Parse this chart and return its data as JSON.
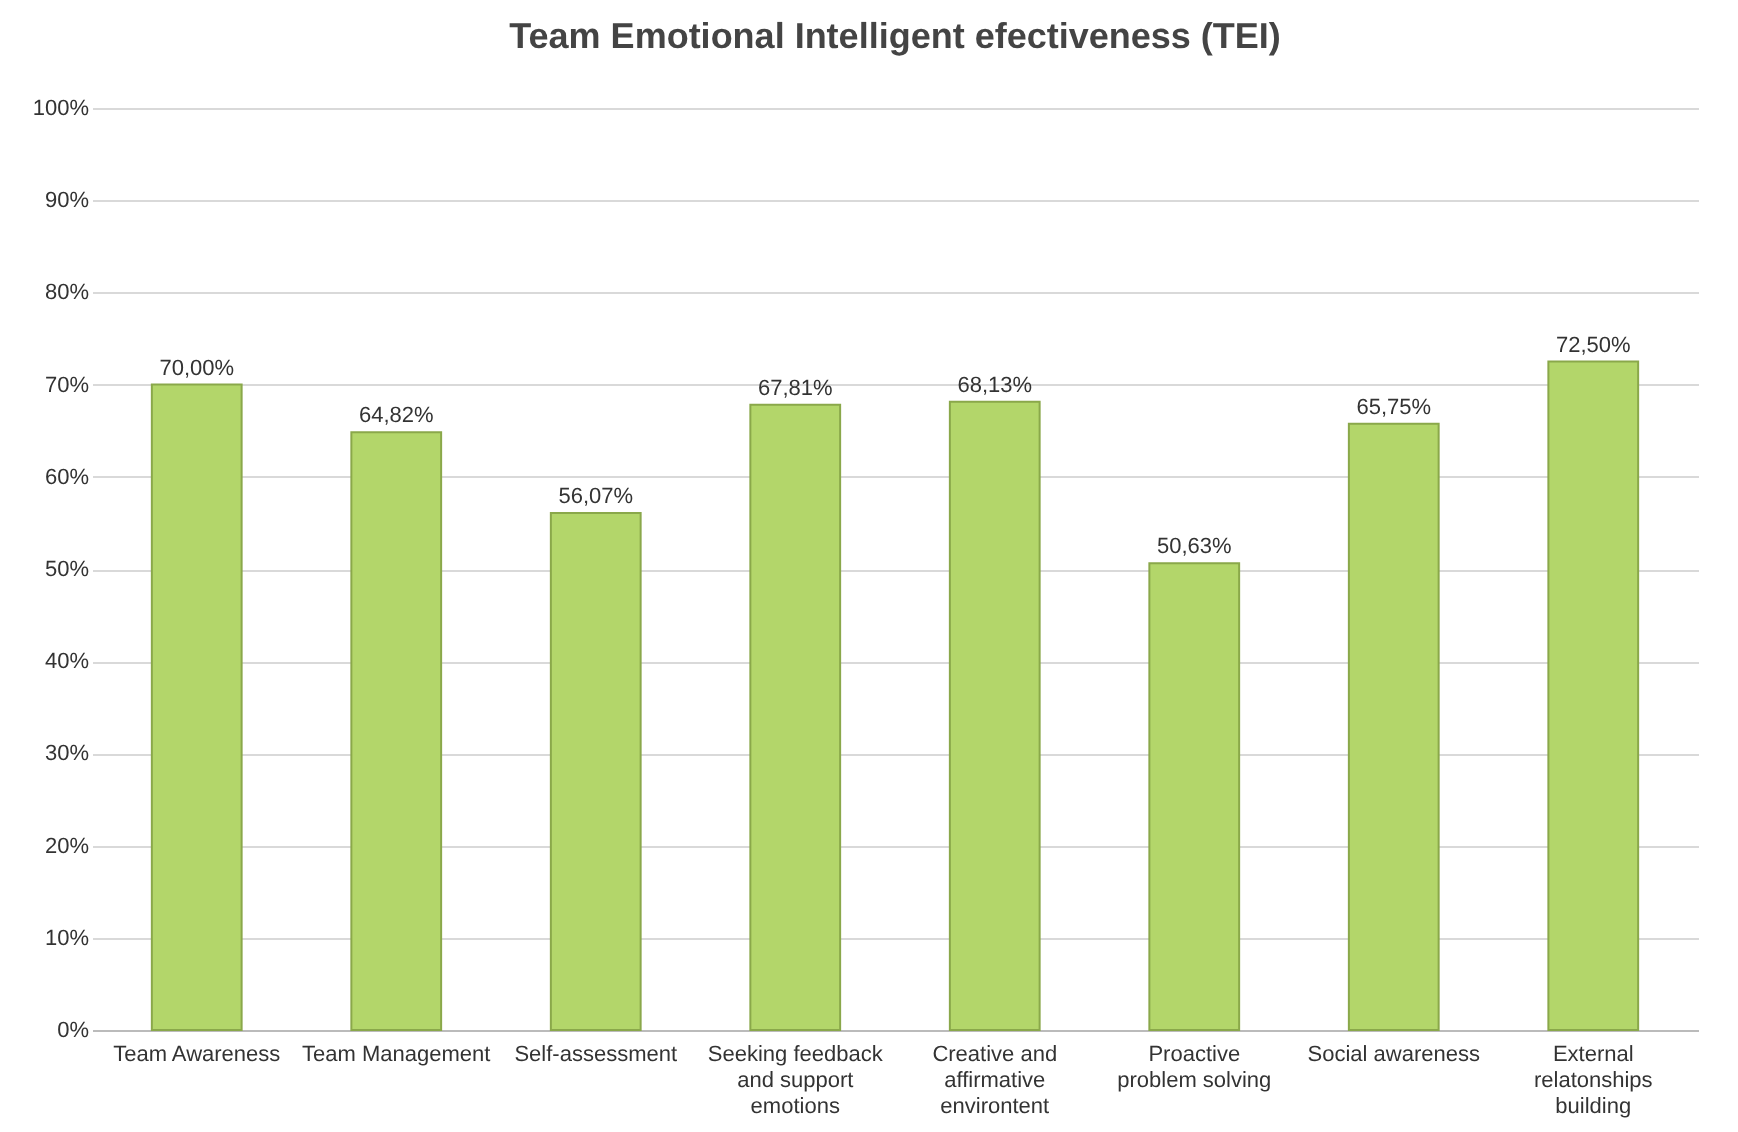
{
  "chart_data": {
    "type": "bar",
    "title": "Team Emotional Intelligent efectiveness (TEI)",
    "categories": [
      "Team Awareness",
      "Team Management",
      "Self-assessment",
      "Seeking feedback and support emotions",
      "Creative and affirmative environtent",
      "Proactive problem solving",
      "Social awareness",
      "External relatonships building"
    ],
    "values": [
      70.0,
      64.82,
      56.07,
      67.81,
      68.13,
      50.63,
      65.75,
      72.5
    ],
    "value_labels": [
      "70,00%",
      "64,82%",
      "56,07%",
      "67,81%",
      "68,13%",
      "50,63%",
      "65,75%",
      "72,50%"
    ],
    "color": "#b3d66a",
    "ylim": [
      0,
      100
    ],
    "yticks": [
      {
        "value": 0,
        "label": "0%"
      },
      {
        "value": 10,
        "label": "10%"
      },
      {
        "value": 20,
        "label": "20%"
      },
      {
        "value": 30,
        "label": "30%"
      },
      {
        "value": 40,
        "label": "40%"
      },
      {
        "value": 50,
        "label": "50%"
      },
      {
        "value": 60,
        "label": "60%"
      },
      {
        "value": 70,
        "label": "70%"
      },
      {
        "value": 80,
        "label": "80%"
      },
      {
        "value": 90,
        "label": "90%"
      },
      {
        "value": 100,
        "label": "100%"
      }
    ],
    "grid": "y"
  }
}
